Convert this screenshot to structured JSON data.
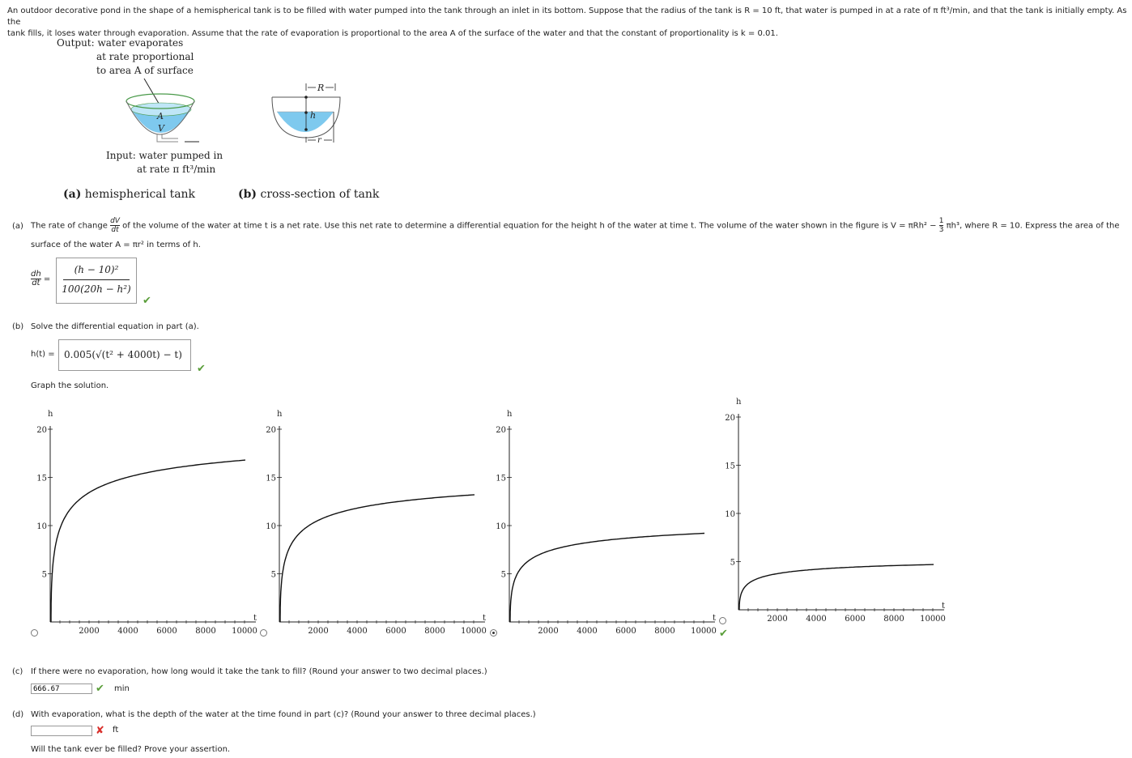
{
  "intro": {
    "text_1": "An outdoor decorative pond in the shape of a hemispherical tank is to be filled with water pumped into the tank through an inlet in its bottom. Suppose that the radius of the tank is R = 10 ft, that water is pumped in at a rate of π ft³/min, and that the tank is initially empty. As the",
    "text_2": "tank fills, it loses water through evaporation. Assume that the rate of evaporation is proportional to the area A of the surface of the water and that the constant of proportionality is k = 0.01."
  },
  "figure": {
    "output_line1": "Output: water evaporates",
    "output_line2": "at rate proportional",
    "output_line3": "to area A of surface",
    "label_A": "A",
    "label_V": "V",
    "input_line1": "Input: water pumped in",
    "input_line2": "at rate π ft³/min",
    "label_R": "R",
    "label_h": "h",
    "label_r": "r",
    "caption_a_tag": "(a)",
    "caption_a": "hemispherical tank",
    "caption_b_tag": "(b)",
    "caption_b": "cross-section of tank"
  },
  "part_a": {
    "tag": "(a)",
    "text_1": "The rate of change",
    "dv": "dV",
    "dt": "dt",
    "text_2": "of the volume of the water at time t is a net rate. Use this net rate to determine a differential equation for the height h of the water at time t. The volume of the water shown in the figure is V = πRh² −",
    "one": "1",
    "three": "3",
    "text_3": "πh³, where R = 10. Express the area of the",
    "text_4": "surface of the water A = πr² in terms of h.",
    "lhs_num": "dh",
    "lhs_den": "dt",
    "equals": "=",
    "answer_num": "(h − 10)²",
    "answer_den": "100(20h − h²)",
    "status": "correct"
  },
  "part_b": {
    "tag": "(b)",
    "text": "Solve the differential equation in part (a).",
    "lhs": "h(t) =",
    "answer": "0.005(√(t² + 4000t) − t)",
    "status": "correct",
    "graph_prompt": "Graph the solution."
  },
  "graphs": {
    "selected_index": 2,
    "correct_index": 3,
    "y_axis_label": "h",
    "x_axis_label": "t",
    "y_ticks": [
      "20",
      "15",
      "10",
      "5"
    ],
    "x_ticks": [
      "2000",
      "4000",
      "6000",
      "8000",
      "10000"
    ],
    "options": [
      {
        "name": "option-1",
        "curve_top": 16.8
      },
      {
        "name": "option-2",
        "curve_top": 13.2
      },
      {
        "name": "option-3",
        "curve_top": 9.2
      },
      {
        "name": "option-4",
        "curve_top": 4.7
      }
    ]
  },
  "part_c": {
    "tag": "(c)",
    "text": "If there were no evaporation, how long would it take the tank to fill? (Round your answer to two decimal places.)",
    "value": "666.67",
    "unit": "min",
    "status": "correct"
  },
  "part_d": {
    "tag": "(d)",
    "text": "With evaporation, what is the depth of the water at the time found in part (c)? (Round your answer to three decimal places.)",
    "value": "",
    "unit": "ft",
    "status": "incorrect",
    "followup": "Will the tank ever be filled? Prove your assertion."
  },
  "colors": {
    "correct": "#5a9e3a",
    "incorrect": "#d9302c",
    "water": "#7ec9ee",
    "tank_rim": "#4a9a4a"
  }
}
